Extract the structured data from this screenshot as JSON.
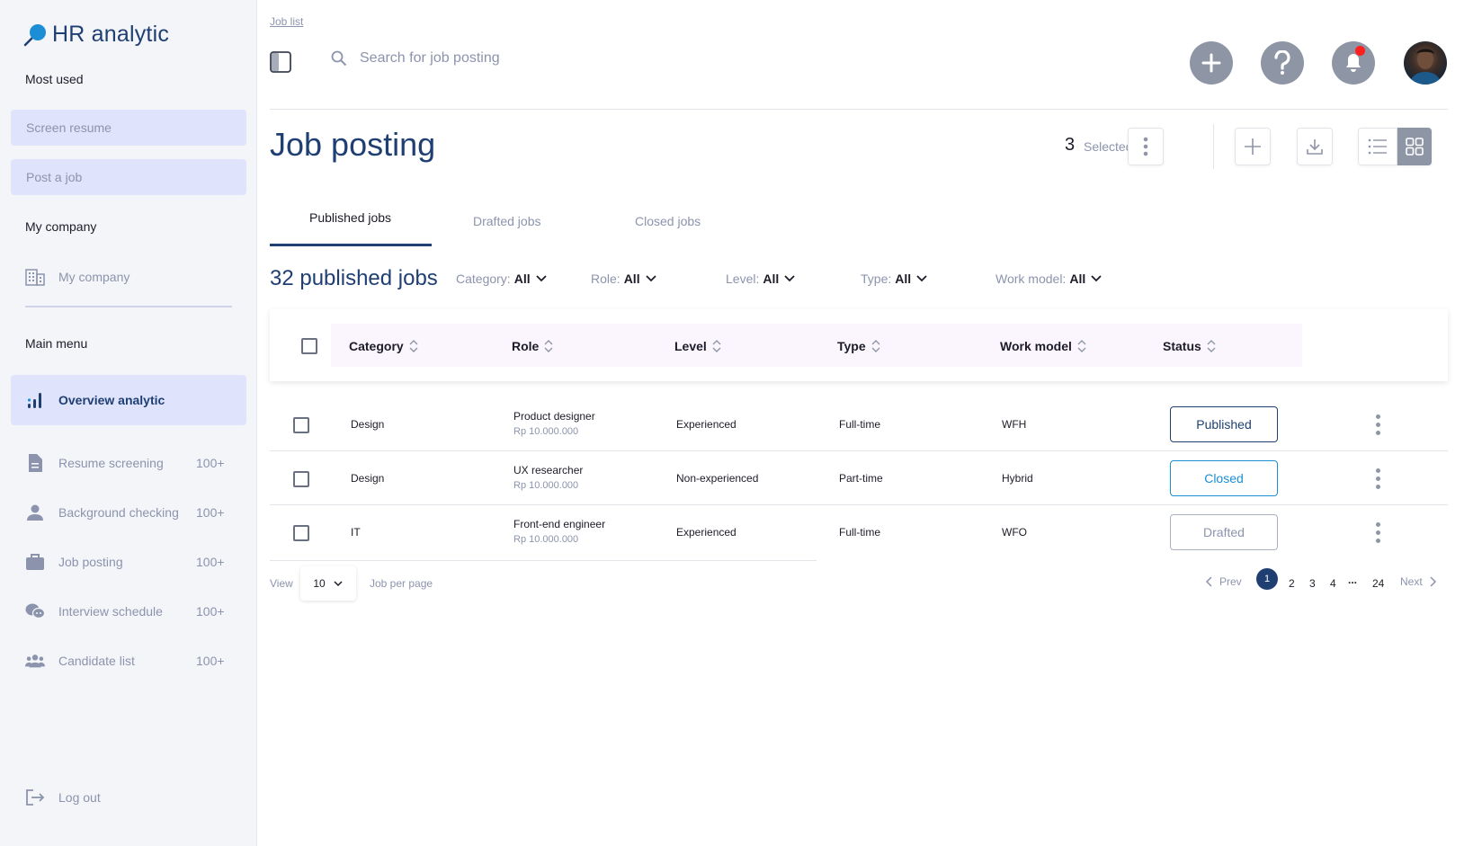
{
  "app": {
    "title": "HR analytic"
  },
  "sidebar": {
    "most_used_title": "Most used",
    "most_used": [
      "Screen resume",
      "Post a job"
    ],
    "my_company_title": "My company",
    "my_company_item": "My company",
    "main_menu_title": "Main menu",
    "main_menu": [
      {
        "label": "Overview analytic",
        "count": "",
        "icon": "bar-chart-icon"
      },
      {
        "label": "Resume screening",
        "count": "100+",
        "icon": "document-icon"
      },
      {
        "label": "Background checking",
        "count": "100+",
        "icon": "person-icon"
      },
      {
        "label": "Job posting",
        "count": "100+",
        "icon": "briefcase-icon"
      },
      {
        "label": "Interview schedule",
        "count": "100+",
        "icon": "chat-icon"
      },
      {
        "label": "Candidate list",
        "count": "100+",
        "icon": "group-icon"
      }
    ],
    "logout": "Log out"
  },
  "header": {
    "breadcrumb": "Job list",
    "search_placeholder": "Search for job posting"
  },
  "page": {
    "title": "Job posting",
    "selected_count": "3",
    "selected_label": "Selected"
  },
  "tabs": [
    {
      "label": "Published jobs",
      "active": true
    },
    {
      "label": "Drafted jobs",
      "active": false
    },
    {
      "label": "Closed jobs",
      "active": false
    }
  ],
  "filters": {
    "count_label": "32 published jobs",
    "items": [
      {
        "label": "Category:",
        "value": "All"
      },
      {
        "label": "Role:",
        "value": "All"
      },
      {
        "label": "Level:",
        "value": "All"
      },
      {
        "label": "Type:",
        "value": "All"
      },
      {
        "label": "Work model:",
        "value": "All"
      }
    ]
  },
  "table": {
    "columns": [
      "Category",
      "Role",
      "Level",
      "Type",
      "Work model",
      "Status"
    ],
    "rows": [
      {
        "category": "Design",
        "role": "Product designer",
        "salary": "Rp 10.000.000",
        "level": "Experienced",
        "type": "Full-time",
        "work_model": "WFH",
        "status": "Published"
      },
      {
        "category": "Design",
        "role": "UX researcher",
        "salary": "Rp 10.000.000",
        "level": "Non-experienced",
        "type": "Part-time",
        "work_model": "Hybrid",
        "status": "Closed"
      },
      {
        "category": "IT",
        "role": "Front-end engineer",
        "salary": "Rp 10.000.000",
        "level": "Experienced",
        "type": "Full-time",
        "work_model": "WFO",
        "status": "Drafted"
      }
    ]
  },
  "pagination": {
    "view_label": "View",
    "per_page": "10",
    "per_page_label": "Job per page",
    "prev": "Prev",
    "next": "Next",
    "pages": [
      "1",
      "2",
      "3",
      "4",
      "...",
      "24"
    ],
    "current": "1"
  },
  "colors": {
    "primary": "#1f3f73",
    "accent": "#dfe3fb",
    "muted": "#8c94ad",
    "notify": "#ff1f1f",
    "published": "#1f3f73",
    "closed": "#1c8ed6",
    "drafted": "#8c94ad"
  }
}
